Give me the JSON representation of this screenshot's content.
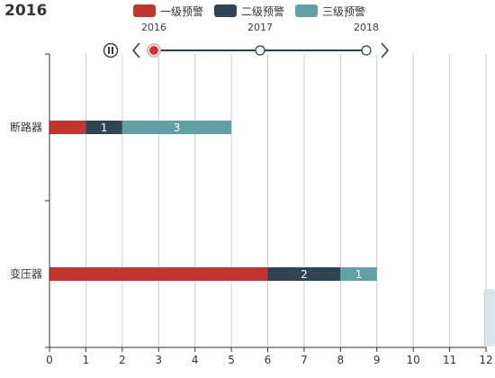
{
  "chart_data": {
    "type": "bar",
    "orientation": "horizontal",
    "stacked": true,
    "title": "2016",
    "categories": [
      "变压器",
      "断路器"
    ],
    "series": [
      {
        "name": "一级预警",
        "color": "#c23531",
        "values": [
          6,
          1
        ]
      },
      {
        "name": "二级预警",
        "color": "#2f4554",
        "values": [
          2,
          1
        ]
      },
      {
        "name": "三级预警",
        "color": "#61a0a8",
        "values": [
          1,
          3
        ]
      }
    ],
    "xlim": [
      0,
      12
    ],
    "xticks": [
      "0",
      "1",
      "2",
      "3",
      "4",
      "5",
      "6",
      "7",
      "8",
      "9",
      "10",
      "11",
      "12"
    ],
    "grid": "vertical",
    "legend_position": "top-center"
  },
  "timeline": {
    "years": [
      "2016",
      "2017",
      "2018"
    ],
    "current": "2016",
    "play_icon": "pause-icon",
    "prev_icon": "chevron-left-icon",
    "next_icon": "chevron-right-icon"
  }
}
